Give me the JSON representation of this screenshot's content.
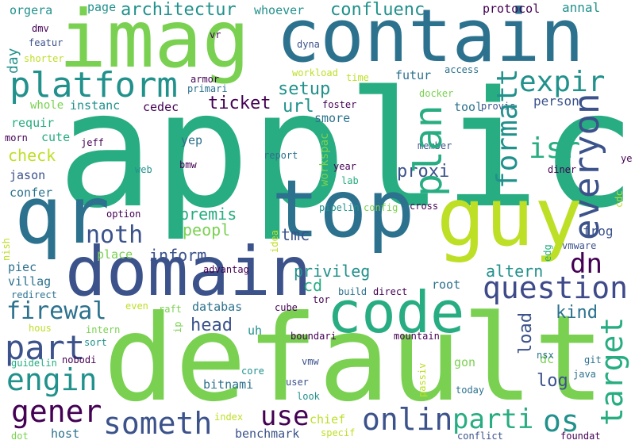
{
  "title": "Word cloud",
  "palette": {
    "deep_purple": "#440154",
    "indigo": "#3b528b",
    "slate_blue": "#3e4a89",
    "teal_blue": "#2c728e",
    "teal": "#21918c",
    "sea_green": "#27ad81",
    "green": "#5ec962",
    "light_green": "#7ad151",
    "yellow_green": "#bddf26",
    "yellow": "#dce319"
  },
  "words": [
    {
      "text": "applic",
      "color": "#27ad81"
    },
    {
      "text": "default",
      "color": "#7ad151"
    },
    {
      "text": "contain",
      "color": "#2c728e"
    },
    {
      "text": "imag",
      "color": "#7ad151"
    },
    {
      "text": "guy",
      "color": "#bddf26"
    },
    {
      "text": "top",
      "color": "#2c728e"
    },
    {
      "text": "domain",
      "color": "#3b528b"
    },
    {
      "text": "qr",
      "color": "#2c728e"
    },
    {
      "text": "code",
      "color": "#27ad81"
    },
    {
      "text": "platform",
      "color": "#21918c"
    },
    {
      "text": "expir",
      "color": "#21918c"
    },
    {
      "text": "question",
      "color": "#3e4a89"
    },
    {
      "text": "engin",
      "color": "#21918c"
    },
    {
      "text": "part",
      "color": "#3b528b"
    },
    {
      "text": "gener",
      "color": "#440154"
    },
    {
      "text": "someth",
      "color": "#3b528b"
    },
    {
      "text": "onlin",
      "color": "#3b528b"
    },
    {
      "text": "use",
      "color": "#440154"
    },
    {
      "text": "os",
      "color": "#21918c"
    },
    {
      "text": "parti",
      "color": "#27ad81"
    },
    {
      "text": "firewal",
      "color": "#2c728e"
    },
    {
      "text": "noth",
      "color": "#3b528b"
    },
    {
      "text": "plan",
      "color": "#27ad81"
    },
    {
      "text": "isr",
      "color": "#27ad81"
    },
    {
      "text": "everyon",
      "color": "#3b528b"
    },
    {
      "text": "formatt",
      "color": "#21918c"
    },
    {
      "text": "target",
      "color": "#27ad81"
    },
    {
      "text": "dn",
      "color": "#440154"
    },
    {
      "text": "architectur",
      "color": "#21918c"
    },
    {
      "text": "confluenc",
      "color": "#21918c"
    },
    {
      "text": "setup",
      "color": "#21918c"
    },
    {
      "text": "ticket",
      "color": "#440154"
    },
    {
      "text": "url",
      "color": "#21918c"
    },
    {
      "text": "proxi",
      "color": "#3b528b"
    },
    {
      "text": "inform",
      "color": "#3b528b"
    },
    {
      "text": "premis",
      "color": "#27ad81"
    },
    {
      "text": "peopl",
      "color": "#7ad151"
    },
    {
      "text": "tmc",
      "color": "#3b528b"
    },
    {
      "text": "privileg",
      "color": "#21918c"
    },
    {
      "text": "altern",
      "color": "#21918c"
    },
    {
      "text": "head",
      "color": "#3b528b"
    },
    {
      "text": "log",
      "color": "#3b528b"
    },
    {
      "text": "load",
      "color": "#3b528b"
    },
    {
      "text": "kind",
      "color": "#2c728e"
    },
    {
      "text": "frog",
      "color": "#3b528b"
    },
    {
      "text": "person",
      "color": "#3b528b"
    },
    {
      "text": "annal",
      "color": "#21918c"
    },
    {
      "text": "protocol",
      "color": "#440154"
    },
    {
      "text": "whoever",
      "color": "#21918c"
    },
    {
      "text": "page",
      "color": "#21918c"
    },
    {
      "text": "orgera",
      "color": "#21918c"
    },
    {
      "text": "day",
      "color": "#21918c"
    },
    {
      "text": "whole",
      "color": "#7ad151"
    },
    {
      "text": "instanc",
      "color": "#21918c"
    },
    {
      "text": "cedec",
      "color": "#440154"
    },
    {
      "text": "check",
      "color": "#bddf26"
    },
    {
      "text": "cute",
      "color": "#27ad81"
    },
    {
      "text": "requir",
      "color": "#27ad81"
    },
    {
      "text": "jason",
      "color": "#3b528b"
    },
    {
      "text": "confer",
      "color": "#2c728e"
    },
    {
      "text": "piec",
      "color": "#2c728e"
    },
    {
      "text": "villag",
      "color": "#2c728e"
    },
    {
      "text": "place",
      "color": "#7ad151"
    },
    {
      "text": "cd",
      "color": "#27ad81"
    },
    {
      "text": "databas",
      "color": "#2c728e"
    },
    {
      "text": "root",
      "color": "#2c728e"
    },
    {
      "text": "dc",
      "color": "#7ad151"
    },
    {
      "text": "gon",
      "color": "#7ad151"
    },
    {
      "text": "uh",
      "color": "#21918c"
    },
    {
      "text": "bitnami",
      "color": "#2c728e"
    },
    {
      "text": "benchmark",
      "color": "#3b528b"
    },
    {
      "text": "host",
      "color": "#2c728e"
    },
    {
      "text": "chief",
      "color": "#bddf26"
    },
    {
      "text": "yep",
      "color": "#2c728e"
    },
    {
      "text": "smore",
      "color": "#2c728e"
    },
    {
      "text": "futur",
      "color": "#2c728e"
    },
    {
      "text": "tool",
      "color": "#2c728e"
    },
    {
      "text": "workspac",
      "color": "#7ad151"
    },
    {
      "text": "dyna",
      "color": "#3b528b"
    },
    {
      "text": "workload",
      "color": "#bddf26"
    },
    {
      "text": "access",
      "color": "#2c728e"
    },
    {
      "text": "time",
      "color": "#bddf26"
    },
    {
      "text": "docker",
      "color": "#7ad151"
    },
    {
      "text": "provis",
      "color": "#3b528b"
    },
    {
      "text": "member",
      "color": "#3b528b"
    },
    {
      "text": "report",
      "color": "#2c728e"
    },
    {
      "text": "year",
      "color": "#440154"
    },
    {
      "text": "lab",
      "color": "#27ad81"
    },
    {
      "text": "diner",
      "color": "#440154"
    },
    {
      "text": "ye",
      "color": "#440154"
    },
    {
      "text": "cdc",
      "color": "#bddf26"
    },
    {
      "text": "vmware",
      "color": "#3b528b"
    },
    {
      "text": "edg",
      "color": "#27ad81"
    },
    {
      "text": "git",
      "color": "#2c728e"
    },
    {
      "text": "java",
      "color": "#2c728e"
    },
    {
      "text": "nsx",
      "color": "#2c728e"
    },
    {
      "text": "today",
      "color": "#2c728e"
    },
    {
      "text": "passiv",
      "color": "#bddf26"
    },
    {
      "text": "foundat",
      "color": "#440154"
    },
    {
      "text": "conflict",
      "color": "#3b528b"
    },
    {
      "text": "specif",
      "color": "#bddf26"
    },
    {
      "text": "mountain",
      "color": "#440154"
    },
    {
      "text": "boundari",
      "color": "#440154"
    },
    {
      "text": "direct",
      "color": "#440154"
    },
    {
      "text": "build",
      "color": "#2c728e"
    },
    {
      "text": "cross",
      "color": "#440154"
    },
    {
      "text": "config",
      "color": "#7ad151"
    },
    {
      "text": "pipelin",
      "color": "#21918c"
    },
    {
      "text": "cube",
      "color": "#440154"
    },
    {
      "text": "tor",
      "color": "#440154"
    },
    {
      "text": "user",
      "color": "#3b528b"
    },
    {
      "text": "look",
      "color": "#21918c"
    },
    {
      "text": "vmw",
      "color": "#3b528b"
    },
    {
      "text": "core",
      "color": "#21918c"
    },
    {
      "text": "index",
      "color": "#bddf26"
    },
    {
      "text": "dot",
      "color": "#7ad151"
    },
    {
      "text": "nobodi",
      "color": "#440154"
    },
    {
      "text": "guidelin",
      "color": "#27ad81"
    },
    {
      "text": "sort",
      "color": "#21918c"
    },
    {
      "text": "intern",
      "color": "#7ad151"
    },
    {
      "text": "ip",
      "color": "#7ad151"
    },
    {
      "text": "hous",
      "color": "#bddf26"
    },
    {
      "text": "raft",
      "color": "#7ad151"
    },
    {
      "text": "even",
      "color": "#bddf26"
    },
    {
      "text": "redirect",
      "color": "#2c728e"
    },
    {
      "text": "nish",
      "color": "#bddf26"
    },
    {
      "text": "advantag",
      "color": "#440154"
    },
    {
      "text": "idea",
      "color": "#bddf26"
    },
    {
      "text": "option",
      "color": "#440154"
    },
    {
      "text": "bmw",
      "color": "#440154"
    },
    {
      "text": "web",
      "color": "#21918c"
    },
    {
      "text": "jeff",
      "color": "#440154"
    },
    {
      "text": "morn",
      "color": "#440154"
    },
    {
      "text": "shorter",
      "color": "#bddf26"
    },
    {
      "text": "featur",
      "color": "#3b528b"
    },
    {
      "text": "dmv",
      "color": "#440154"
    },
    {
      "text": "vr",
      "color": "#440154"
    },
    {
      "text": "armor",
      "color": "#440154"
    },
    {
      "text": "primari",
      "color": "#2c728e"
    },
    {
      "text": "foster",
      "color": "#440154"
    }
  ]
}
